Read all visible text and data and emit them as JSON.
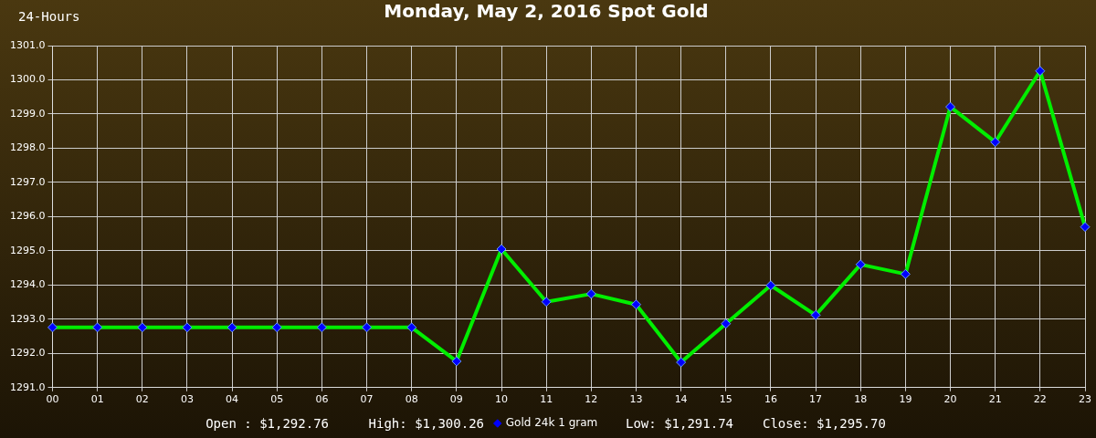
{
  "chart_data": {
    "type": "line",
    "title": "Monday, May 2, 2016 Spot Gold",
    "annotations": [
      "24-Hours",
      "Open : $1,292.76",
      "High: $1,300.26",
      "Low: $1,291.74",
      "Close: $1,295.70"
    ],
    "categories": [
      "00",
      "01",
      "02",
      "03",
      "04",
      "05",
      "06",
      "07",
      "08",
      "09",
      "10",
      "11",
      "12",
      "13",
      "14",
      "15",
      "16",
      "17",
      "18",
      "19",
      "20",
      "21",
      "22",
      "23"
    ],
    "series": [
      {
        "name": "Gold 24k 1 gram",
        "color": "#00ee00",
        "values": [
          1292.76,
          1292.76,
          1292.76,
          1292.76,
          1292.76,
          1292.76,
          1292.76,
          1292.76,
          1292.76,
          1291.77,
          1295.05,
          1293.51,
          1293.74,
          1293.43,
          1291.74,
          1292.87,
          1293.99,
          1293.12,
          1294.6,
          1294.32,
          1299.21,
          1298.18,
          1300.26,
          1295.7
        ]
      }
    ],
    "ylim": [
      1291,
      1301
    ],
    "yticks": [
      {
        "value": 1291,
        "label": "1291.0"
      },
      {
        "value": 1292,
        "label": "1292.0"
      },
      {
        "value": 1293,
        "label": "1293.0"
      },
      {
        "value": 1294,
        "label": "1294.0"
      },
      {
        "value": 1295,
        "label": "1295.0"
      },
      {
        "value": 1296,
        "label": "1296.0"
      },
      {
        "value": 1297,
        "label": "1297.0"
      },
      {
        "value": 1298,
        "label": "1298.0"
      },
      {
        "value": 1299,
        "label": "1299.0"
      },
      {
        "value": 1300,
        "label": "1300.0"
      },
      {
        "value": 1301,
        "label": "1301.0"
      }
    ],
    "grid": true,
    "legend": "bottom",
    "marker": "diamond",
    "line_style": "solid"
  }
}
